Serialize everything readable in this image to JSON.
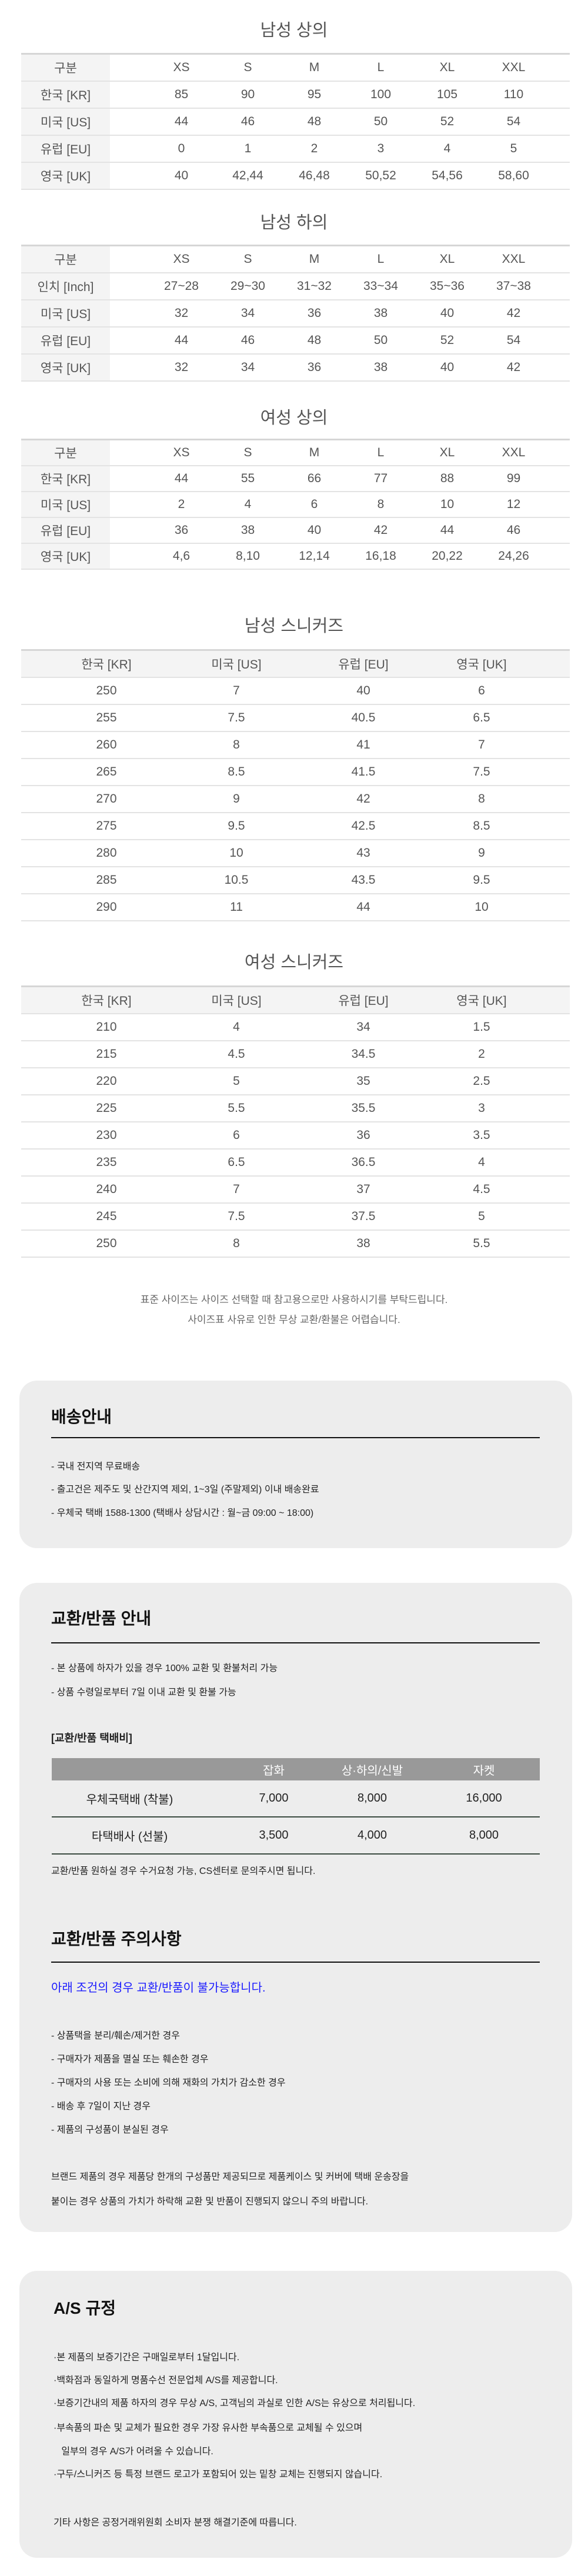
{
  "size_tables": [
    {
      "title": "남성 상의",
      "header": [
        "구분",
        "XS",
        "S",
        "M",
        "L",
        "XL",
        "XXL"
      ],
      "rows": [
        [
          "한국 [KR]",
          "85",
          "90",
          "95",
          "100",
          "105",
          "110"
        ],
        [
          "미국 [US]",
          "44",
          "46",
          "48",
          "50",
          "52",
          "54"
        ],
        [
          "유럽 [EU]",
          "0",
          "1",
          "2",
          "3",
          "4",
          "5"
        ],
        [
          "영국 [UK]",
          "40",
          "42,44",
          "46,48",
          "50,52",
          "54,56",
          "58,60"
        ]
      ]
    },
    {
      "title": "남성 하의",
      "header": [
        "구분",
        "XS",
        "S",
        "M",
        "L",
        "XL",
        "XXL"
      ],
      "rows": [
        [
          "인치 [Inch]",
          "27~28",
          "29~30",
          "31~32",
          "33~34",
          "35~36",
          "37~38"
        ],
        [
          "미국 [US]",
          "32",
          "34",
          "36",
          "38",
          "40",
          "42"
        ],
        [
          "유럽 [EU]",
          "44",
          "46",
          "48",
          "50",
          "52",
          "54"
        ],
        [
          "영국 [UK]",
          "32",
          "34",
          "36",
          "38",
          "40",
          "42"
        ]
      ]
    },
    {
      "title": "여성 상의",
      "header": [
        "구분",
        "XS",
        "S",
        "M",
        "L",
        "XL",
        "XXL"
      ],
      "rows": [
        [
          "한국 [KR]",
          "44",
          "55",
          "66",
          "77",
          "88",
          "99"
        ],
        [
          "미국 [US]",
          "2",
          "4",
          "6",
          "8",
          "10",
          "12"
        ],
        [
          "유럽 [EU]",
          "36",
          "38",
          "40",
          "42",
          "44",
          "46"
        ],
        [
          "영국 [UK]",
          "4,6",
          "8,10",
          "12,14",
          "16,18",
          "20,22",
          "24,26"
        ]
      ]
    }
  ],
  "shoe_tables": [
    {
      "title": "남성 스니커즈",
      "header": [
        "한국 [KR]",
        "미국 [US]",
        "유럽 [EU]",
        "영국 [UK]"
      ],
      "rows": [
        [
          "250",
          "7",
          "40",
          "6"
        ],
        [
          "255",
          "7.5",
          "40.5",
          "6.5"
        ],
        [
          "260",
          "8",
          "41",
          "7"
        ],
        [
          "265",
          "8.5",
          "41.5",
          "7.5"
        ],
        [
          "270",
          "9",
          "42",
          "8"
        ],
        [
          "275",
          "9.5",
          "42.5",
          "8.5"
        ],
        [
          "280",
          "10",
          "43",
          "9"
        ],
        [
          "285",
          "10.5",
          "43.5",
          "9.5"
        ],
        [
          "290",
          "11",
          "44",
          "10"
        ]
      ]
    },
    {
      "title": "여성 스니커즈",
      "header": [
        "한국 [KR]",
        "미국 [US]",
        "유럽 [EU]",
        "영국 [UK]"
      ],
      "rows": [
        [
          "210",
          "4",
          "34",
          "1.5"
        ],
        [
          "215",
          "4.5",
          "34.5",
          "2"
        ],
        [
          "220",
          "5",
          "35",
          "2.5"
        ],
        [
          "225",
          "5.5",
          "35.5",
          "3"
        ],
        [
          "230",
          "6",
          "36",
          "3.5"
        ],
        [
          "235",
          "6.5",
          "36.5",
          "4"
        ],
        [
          "240",
          "7",
          "37",
          "4.5"
        ],
        [
          "245",
          "7.5",
          "37.5",
          "5"
        ],
        [
          "250",
          "8",
          "38",
          "5.5"
        ]
      ]
    }
  ],
  "size_notes": [
    "표준 사이즈는 사이즈 선택할 때 참고용으로만 사용하시기를 부탁드립니다.",
    "사이즈표 사유로 인한 무상 교환/환불은 어렵습니다."
  ],
  "shipping": {
    "title": "배송안내",
    "items": [
      "- 국내 전지역 무료배송",
      "- 출고건은 제주도 및 산간지역 제외,  1~3일 (주말제외) 이내 배송완료",
      "- 우체국 택배 1588-1300 (택배사 상담시간 : 월~금 09:00 ~ 18:00)"
    ]
  },
  "exchange": {
    "title": "교환/반품 안내",
    "items": [
      "- 본 상품에 하자가 있을 경우 100% 교환 및 환불처리 가능",
      "- 상품 수령일로부터 7일 이내 교환 및 환불 가능"
    ],
    "fee_title": "[교환/반품 택배비]",
    "fee_header": [
      "",
      "잡화",
      "상·하의/신발",
      "자켓"
    ],
    "fee_rows": [
      [
        "우체국택배 (착불)",
        "7,000",
        "8,000",
        "16,000"
      ],
      [
        "타택배사 (선불)",
        "3,500",
        "4,000",
        "8,000"
      ]
    ],
    "fee_note": "교환/반품 원하실 경우 수거요청 가능, CS센터로 문의주시면 됩니다.",
    "caution_title": "교환/반품 주의사항",
    "caution_highlight": "아래 조건의 경우 교환/반품이 불가능합니다.",
    "caution_items": [
      "- 상품택을 분리/훼손/제거한 경우",
      "- 구매자가 제품을 멸실 또는 훼손한 경우",
      "- 구매자의 사용 또는 소비에 의해 재화의 가치가 감소한 경우",
      "- 배송 후 7일이 지난 경우",
      "- 제품의 구성품이 분실된 경우"
    ],
    "brand_note": [
      "브랜드 제품의 경우 제품당 한개의 구성품만 제공되므로 제품케이스 및 커버에 택배 운송장을",
      "붙이는 경우 상품의 가치가 하락해 교환 및 반품이 진행되지 않으니 주의 바랍니다."
    ]
  },
  "as": {
    "title": "A/S 규정",
    "items": [
      "·본 제품의 보증기간은 구매일로부터 1달입니다.",
      "·백화점과 동일하게 명품수선 전문업체 A/S를 제공합니다.",
      "·보증기간내의 제품 하자의 경우 무상 A/S, 고객님의 과실로 인한 A/S는 유상으로 처리됩니다.",
      "·부속품의 파손 및 교체가 필요한 경우 가장 유사한 부속품으로 교체될 수 있으며",
      "   일부의 경우 A/S가 어려울 수 있습니다.",
      "·구두/스니커즈 등 특정 브랜드 로고가 포함되어 있는 밑창 교체는 진행되지 않습니다."
    ],
    "footer": "기타 사항은 공정거래위원회 소비자 분쟁 해결기준에 따릅니다."
  },
  "colors": {
    "highlight": "#1a1aff",
    "box_bg": "#ededed",
    "fee_header_bg": "#999999"
  }
}
